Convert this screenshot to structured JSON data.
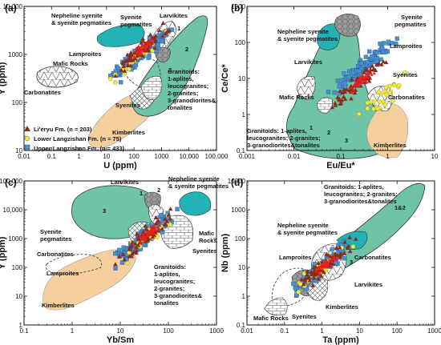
{
  "colors": {
    "green": "#6fc4a6",
    "teal": "#22b2b6",
    "orange": "#f6cf9e",
    "gray": "#9c9c9c",
    "liEryu": "#8b2b1c",
    "lower": "#f2e83a",
    "upper": "#4a8fd0",
    "red": "#e8211f"
  },
  "legend": {
    "li_eryu": "Li'eryu Fm. (n = 203)",
    "lower": "Lower Langzishan Fm. (n = 75)",
    "upper": "Upper Langzishan Fm. (n = 433)"
  },
  "chart_data": [
    {
      "type": "scatter",
      "panel": "(a)",
      "xlabel": "U (ppm)",
      "ylabel": "Y (ppm)",
      "xscale": "log",
      "yscale": "log",
      "xlim": [
        0.01,
        100000
      ],
      "ylim": [
        10,
        10000
      ],
      "xticks": [
        "0.01",
        "0.1",
        "1",
        "10",
        "100",
        "1000",
        "10,000",
        "100,000"
      ],
      "yticks": [
        "10",
        "100",
        "1000",
        "10,000"
      ],
      "fields": [
        "Nepheline syenite & syenite pegmatites",
        "Syenite pegmatites",
        "Larvikites",
        "Lamproites",
        "Mafic Rocks",
        "Carbonatites",
        "Granitoids: 1-aplites, leucogranites; 2-granites; 3-granodiorites& tonalites",
        "Syenites",
        "Kimberlites"
      ],
      "field_numbers": [
        "1",
        "2",
        "3"
      ],
      "series": [
        {
          "name": "Li'eryu Fm. (n = 203)",
          "center": [
            200,
            1300
          ]
        },
        {
          "name": "Lower Langzishan Fm. (n = 75)",
          "center": [
            150,
            900
          ]
        },
        {
          "name": "Upper Langzishan Fm. (n = 433)",
          "center": [
            180,
            1000
          ]
        }
      ]
    },
    {
      "type": "scatter",
      "panel": "(b)",
      "xlabel": "Eu/Eu*",
      "ylabel": "Ce/Ce*",
      "xscale": "log",
      "yscale": "log",
      "xlim": [
        0.001,
        10
      ],
      "ylim": [
        0.1,
        1000
      ],
      "xticks": [
        "0.001",
        "0.01",
        "0.1",
        "1",
        "10"
      ],
      "yticks": [
        "0.1",
        "1",
        "10",
        "100",
        "1000"
      ],
      "fields": [
        "Nepheline syenite & syenite pegmatites",
        "Syenite pegmatites",
        "Lamproites",
        "Larvikites",
        "Syenites",
        "Mafic Rocks",
        "Carbonatites",
        "Granitoids: 1-aplites, leucogranites; 2-granites; 3-granodiorites&tonalites",
        "Kimberlites"
      ],
      "field_numbers": [
        "1",
        "2",
        "3"
      ],
      "series": [
        {
          "name": "Li'eryu Fm.",
          "center": [
            0.25,
            8
          ]
        },
        {
          "name": "Lower Langzishan Fm.",
          "center": [
            0.8,
            3
          ]
        },
        {
          "name": "Upper Langzishan Fm.",
          "center": [
            0.3,
            20
          ]
        }
      ]
    },
    {
      "type": "scatter",
      "panel": "(c)",
      "xlabel": "Yb/Sm",
      "ylabel": "Y (ppm)",
      "xscale": "log",
      "yscale": "log",
      "xlim": [
        0.1,
        1000
      ],
      "ylim": [
        1,
        100000
      ],
      "xticks": [
        "0.1",
        "1",
        "10",
        "100",
        "1000"
      ],
      "yticks": [
        "1",
        "10",
        "100",
        "1000",
        "10,000",
        "100,000"
      ],
      "fields": [
        "Larvikites",
        "Nepheline syenite & syenite pegmatites",
        "Syenite pegmatites",
        "Mafic Rocks",
        "Carbonatites",
        "Syenites",
        "Lamproites",
        "Granitoids: 1-aplites, leucogranites; 2-granites; 3-granodiorites& tonalites",
        "Kimberlites"
      ],
      "field_numbers": [
        "1",
        "2",
        "3"
      ],
      "series": [
        {
          "name": "Li'eryu Fm.",
          "center": [
            40,
            1500
          ]
        },
        {
          "name": "Lower Langzishan Fm.",
          "center": [
            35,
            1000
          ]
        },
        {
          "name": "Upper Langzishan Fm.",
          "center": [
            30,
            1000
          ]
        }
      ]
    },
    {
      "type": "scatter",
      "panel": "(d)",
      "xlabel": "Ta (ppm)",
      "ylabel": "Nb (ppm)",
      "xscale": "log",
      "yscale": "log",
      "xlim": [
        0.01,
        1000
      ],
      "ylim": [
        0.1,
        10000
      ],
      "xticks": [
        "0.01",
        "0.1",
        "1",
        "10",
        "100",
        "1000"
      ],
      "yticks": [
        "0.1",
        "1",
        "10",
        "100",
        "1000",
        "10000"
      ],
      "fields": [
        "Granitoids: 1-aplites, leucogranites; 2-granites; 3-granodiorites&tonalites",
        "Nepheline syenite & syenite pegmatites",
        "Lamproites",
        "Carbonatites",
        "Larvikites",
        "Kimberlites",
        "Mafic Rocks",
        "Syenites"
      ],
      "field_numbers": [
        "1&2",
        "3"
      ],
      "series": [
        {
          "name": "Li'eryu Fm.",
          "center": [
            1.2,
            12
          ]
        },
        {
          "name": "Lower Langzishan Fm.",
          "center": [
            0.8,
            8
          ]
        },
        {
          "name": "Upper Langzishan Fm.",
          "center": [
            1.0,
            10
          ]
        }
      ]
    }
  ]
}
